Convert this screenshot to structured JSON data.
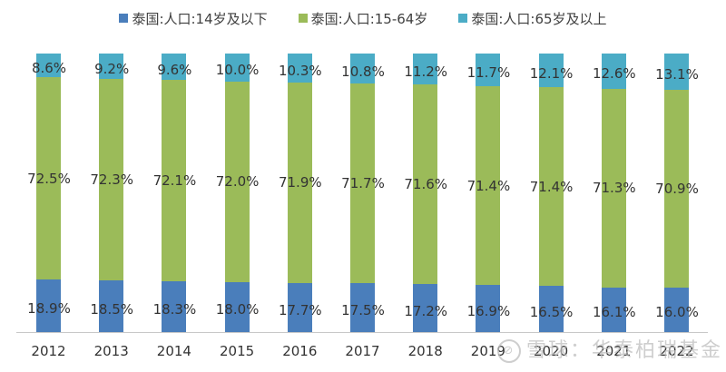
{
  "colors": {
    "under14": "#4a7ebb",
    "age15_64": "#9bbb59",
    "over65": "#4bacc6"
  },
  "legend": [
    {
      "label": "泰国:人口:14岁及以下",
      "color": "#4a7ebb"
    },
    {
      "label": "泰国:人口:15-64岁",
      "color": "#9bbb59"
    },
    {
      "label": "泰国:人口:65岁及以上",
      "color": "#4bacc6"
    }
  ],
  "watermark": {
    "text": "雪球：华泰柏瑞基金"
  },
  "chart_data": {
    "type": "bar",
    "stacked": true,
    "percent_stacked": true,
    "title": "",
    "xlabel": "",
    "ylabel": "",
    "ylim": [
      0,
      100
    ],
    "grid": false,
    "legend_position": "top",
    "categories": [
      "2012",
      "2013",
      "2014",
      "2015",
      "2016",
      "2017",
      "2018",
      "2019",
      "2020",
      "2021",
      "2022"
    ],
    "series": [
      {
        "name": "泰国:人口:14岁及以下",
        "values": [
          18.9,
          18.5,
          18.3,
          18.0,
          17.7,
          17.5,
          17.2,
          16.9,
          16.5,
          16.1,
          16.0
        ],
        "labels": [
          "18.9%",
          "18.5%",
          "18.3%",
          "18.0%",
          "17.7%",
          "17.5%",
          "17.2%",
          "16.9%",
          "16.5%",
          "16.1%",
          "16.0%"
        ]
      },
      {
        "name": "泰国:人口:15-64岁",
        "values": [
          72.5,
          72.3,
          72.1,
          72.0,
          71.9,
          71.7,
          71.6,
          71.4,
          71.4,
          71.3,
          70.9
        ],
        "labels": [
          "72.5%",
          "72.3%",
          "72.1%",
          "72.0%",
          "71.9%",
          "71.7%",
          "71.6%",
          "71.4%",
          "71.4%",
          "71.3%",
          "70.9%"
        ]
      },
      {
        "name": "泰国:人口:65岁及以上",
        "values": [
          8.6,
          9.2,
          9.6,
          10.0,
          10.3,
          10.8,
          11.2,
          11.7,
          12.1,
          12.6,
          13.1
        ],
        "labels": [
          "8.6%",
          "9.2%",
          "9.6%",
          "10.0%",
          "10.3%",
          "10.8%",
          "11.2%",
          "11.7%",
          "12.1%",
          "12.6%",
          "13.1%"
        ]
      }
    ]
  }
}
